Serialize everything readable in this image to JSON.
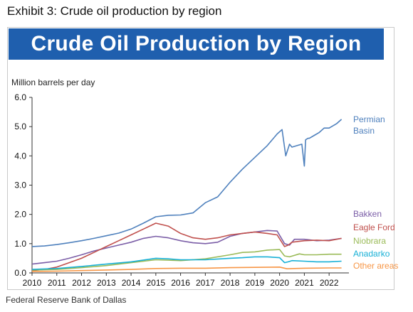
{
  "header": {
    "exhibit_title": "Exhibit 3: Crude oil production by region"
  },
  "footer": {
    "source": "Federal Reserve Bank of Dallas"
  },
  "colors": {
    "banner": "#1f5fae",
    "banner_text": "#ffffff"
  },
  "chart_data": {
    "type": "line",
    "title": "Crude Oil Production by Region",
    "ylabel": "Million barrels per day",
    "xlabel": "",
    "ylim": [
      0,
      6
    ],
    "xlim": [
      2010,
      2022.8
    ],
    "yticks": [
      "0.0",
      "1.0",
      "2.0",
      "3.0",
      "4.0",
      "5.0",
      "6.0"
    ],
    "xticks": [
      "2010",
      "2011",
      "2012",
      "2013",
      "2014",
      "2015",
      "2016",
      "2017",
      "2018",
      "2019",
      "2020",
      "2021",
      "2022"
    ],
    "legend": "right",
    "grid": false,
    "series": [
      {
        "name": "Permian Basin",
        "label_lines": [
          "Permian",
          "Basin"
        ],
        "color": "#4f81bd",
        "x": [
          2010,
          2010.5,
          2011,
          2011.5,
          2012,
          2012.5,
          2013,
          2013.5,
          2014,
          2014.5,
          2015,
          2015.5,
          2016,
          2016.5,
          2017,
          2017.5,
          2018,
          2018.5,
          2019,
          2019.5,
          2019.9,
          2020.1,
          2020.25,
          2020.4,
          2020.5,
          2020.7,
          2020.9,
          2021.0,
          2021.05,
          2021.15,
          2021.2,
          2021.4,
          2021.6,
          2021.8,
          2022.0,
          2022.3,
          2022.5
        ],
        "y": [
          0.9,
          0.92,
          0.97,
          1.03,
          1.1,
          1.18,
          1.27,
          1.36,
          1.5,
          1.7,
          1.92,
          1.97,
          1.98,
          2.05,
          2.4,
          2.6,
          3.1,
          3.55,
          3.95,
          4.35,
          4.75,
          4.9,
          4.0,
          4.4,
          4.3,
          4.35,
          4.4,
          3.65,
          4.55,
          4.6,
          4.6,
          4.7,
          4.8,
          4.95,
          4.95,
          5.1,
          5.25
        ]
      },
      {
        "name": "Bakken",
        "label_lines": [
          "Bakken"
        ],
        "color": "#7b5ea7",
        "x": [
          2010,
          2010.5,
          2011,
          2011.5,
          2012,
          2012.5,
          2013,
          2013.5,
          2014,
          2014.5,
          2015,
          2015.5,
          2016,
          2016.5,
          2017,
          2017.5,
          2018,
          2018.5,
          2019,
          2019.5,
          2019.9,
          2020.2,
          2020.4,
          2020.6,
          2021,
          2021.5,
          2022,
          2022.5
        ],
        "y": [
          0.3,
          0.35,
          0.4,
          0.5,
          0.62,
          0.75,
          0.85,
          0.95,
          1.05,
          1.18,
          1.25,
          1.2,
          1.1,
          1.03,
          1.0,
          1.05,
          1.25,
          1.35,
          1.4,
          1.45,
          1.43,
          1.0,
          0.95,
          1.15,
          1.15,
          1.1,
          1.12,
          1.18
        ]
      },
      {
        "name": "Eagle Ford",
        "label_lines": [
          "Eagle Ford"
        ],
        "color": "#c0504d",
        "x": [
          2010,
          2010.5,
          2011,
          2011.5,
          2012,
          2012.5,
          2013,
          2013.5,
          2014,
          2014.5,
          2015,
          2015.5,
          2016,
          2016.5,
          2017,
          2017.5,
          2018,
          2018.5,
          2019,
          2019.5,
          2019.9,
          2020.2,
          2020.35,
          2020.5,
          2021,
          2021.5,
          2022,
          2022.5
        ],
        "y": [
          0.08,
          0.12,
          0.2,
          0.35,
          0.5,
          0.7,
          0.9,
          1.1,
          1.3,
          1.5,
          1.7,
          1.6,
          1.35,
          1.2,
          1.15,
          1.2,
          1.3,
          1.35,
          1.4,
          1.35,
          1.3,
          0.9,
          0.95,
          1.05,
          1.1,
          1.12,
          1.1,
          1.18
        ]
      },
      {
        "name": "Niobrara",
        "label_lines": [
          "Niobrara"
        ],
        "color": "#9bbb59",
        "x": [
          2010,
          2011,
          2012,
          2013,
          2014,
          2015,
          2016,
          2017,
          2018,
          2018.5,
          2019,
          2019.5,
          2020.0,
          2020.2,
          2020.4,
          2020.8,
          2021,
          2021.5,
          2022,
          2022.5
        ],
        "y": [
          0.1,
          0.12,
          0.18,
          0.25,
          0.35,
          0.45,
          0.42,
          0.48,
          0.62,
          0.7,
          0.72,
          0.78,
          0.8,
          0.58,
          0.55,
          0.65,
          0.62,
          0.62,
          0.64,
          0.64
        ]
      },
      {
        "name": "Anadarko",
        "label_lines": [
          "Anadarko"
        ],
        "color": "#17b0d6",
        "x": [
          2010,
          2011,
          2012,
          2013,
          2014,
          2015,
          2015.5,
          2016,
          2017,
          2018,
          2018.5,
          2019,
          2019.5,
          2020.0,
          2020.2,
          2020.35,
          2020.5,
          2021,
          2021.5,
          2022,
          2022.5
        ],
        "y": [
          0.12,
          0.15,
          0.22,
          0.3,
          0.38,
          0.5,
          0.48,
          0.45,
          0.45,
          0.5,
          0.52,
          0.55,
          0.55,
          0.52,
          0.35,
          0.38,
          0.42,
          0.4,
          0.38,
          0.38,
          0.4
        ]
      },
      {
        "name": "Other areas",
        "label_lines": [
          "Other areas"
        ],
        "color": "#f79646",
        "x": [
          2010,
          2011,
          2012,
          2013,
          2014,
          2015,
          2016,
          2017,
          2018,
          2019,
          2020,
          2020.3,
          2020.6,
          2021,
          2022,
          2022.5
        ],
        "y": [
          0.05,
          0.06,
          0.08,
          0.1,
          0.12,
          0.15,
          0.16,
          0.16,
          0.18,
          0.19,
          0.2,
          0.14,
          0.15,
          0.16,
          0.17,
          0.17
        ]
      }
    ]
  }
}
